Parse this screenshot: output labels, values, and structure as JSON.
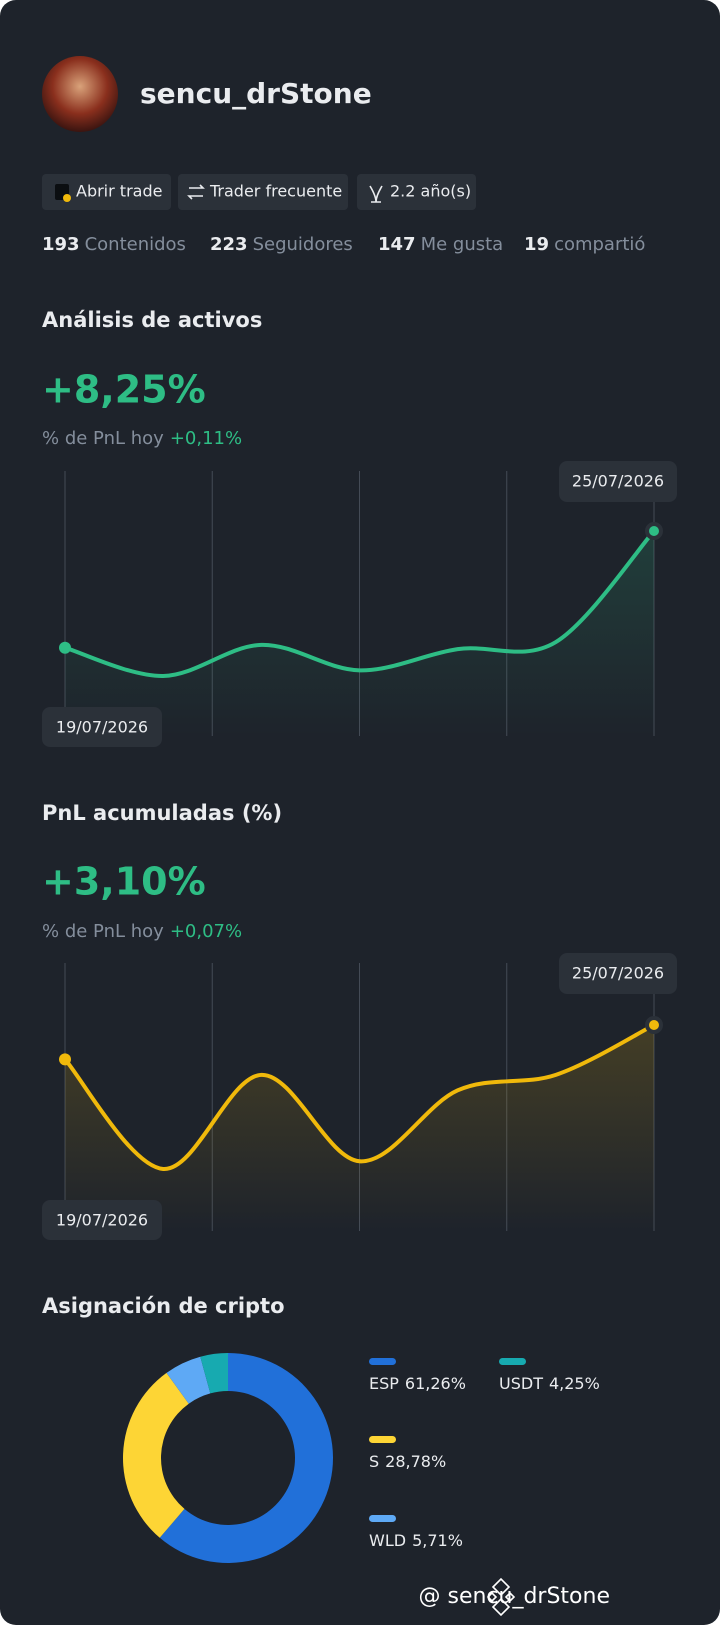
{
  "profile": {
    "username": "sencu_drStone",
    "badges": [
      "Abrir trade",
      "Trader frecuente",
      "2.2 año(s)"
    ],
    "stats": [
      {
        "value": 193,
        "label": "Contenidos"
      },
      {
        "value": 223,
        "label": "Seguidores"
      },
      {
        "value": 147,
        "label": "Me gusta"
      },
      {
        "value": 19,
        "label": "compartió"
      }
    ]
  },
  "chart_data": [
    {
      "type": "line",
      "title": "Análisis de activos",
      "headline": "+8,25%",
      "subtitle_label": "% de PnL hoy",
      "subtitle_value": "+0,11%",
      "x": [
        "19/07/2026",
        null,
        null,
        null,
        null,
        null,
        "25/07/2026"
      ],
      "series": [
        {
          "color": "#2ebd85",
          "values": [
            0,
            -2.0,
            0.2,
            -1.6,
            -0.1,
            0.4,
            8.25
          ]
        }
      ]
    },
    {
      "type": "line",
      "title": "PnL acumuladas (%)",
      "headline": "+3,10%",
      "subtitle_label": "% de PnL hoy",
      "subtitle_value": "+0,07%",
      "x": [
        "19/07/2026",
        null,
        null,
        null,
        null,
        null,
        "25/07/2026"
      ],
      "series": [
        {
          "color": "#f0b90b",
          "values": [
            0,
            -9.9,
            -1.4,
            -9.2,
            -2.8,
            -1.4,
            3.1
          ]
        }
      ]
    },
    {
      "type": "pie",
      "title": "Asignación de cripto",
      "categories": [
        "ESP",
        "S",
        "WLD",
        "USDT"
      ],
      "values": [
        61.26,
        28.78,
        5.71,
        4.25
      ],
      "value_labels": [
        "61,26%",
        "28,78%",
        "5,71%",
        "4,25%"
      ],
      "colors": [
        "#2170d9",
        "#fdd535",
        "#5ea9f5",
        "#17aab0"
      ]
    }
  ],
  "watermark": "@ sencu_drStone"
}
